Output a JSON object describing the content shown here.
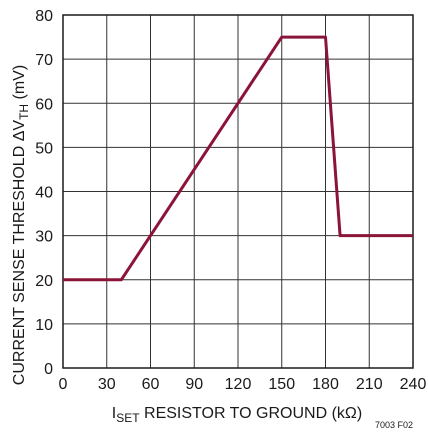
{
  "chart_data": {
    "type": "line",
    "title": "",
    "xlabel": {
      "main": "I",
      "sub": "SET",
      "rest": " RESISTOR TO GROUND (kΩ)"
    },
    "ylabel": {
      "main": "CURRENT SENSE THRESHOLD ΔV",
      "sub": "TH",
      "rest": " (mV)"
    },
    "xlim": [
      0,
      240
    ],
    "ylim": [
      0,
      80
    ],
    "xticks": [
      "0",
      "30",
      "60",
      "90",
      "120",
      "150",
      "180",
      "210",
      "240"
    ],
    "yticks": [
      "0",
      "10",
      "20",
      "30",
      "40",
      "50",
      "60",
      "70",
      "80"
    ],
    "grid": true,
    "series": [
      {
        "color": "#8b1538",
        "x": [
          0,
          40,
          150,
          180,
          190,
          240
        ],
        "y": [
          20,
          20,
          75,
          75,
          30,
          30
        ]
      }
    ],
    "figure_id": "7003 F02"
  }
}
